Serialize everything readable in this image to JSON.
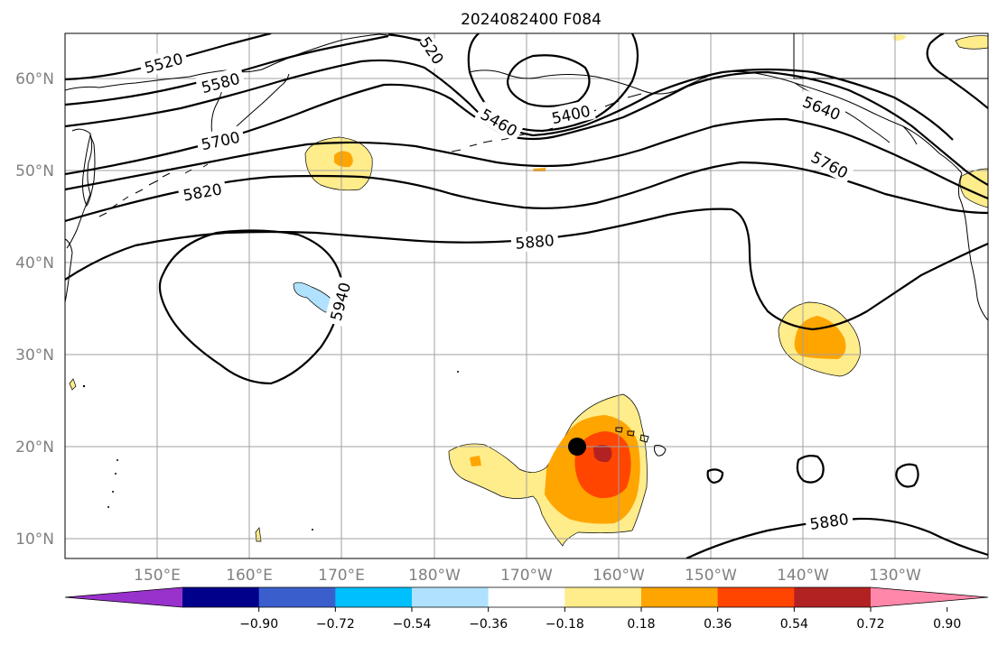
{
  "title": "2024082400 F084",
  "lat_labels": [
    "60°N",
    "50°N",
    "40°N",
    "30°N",
    "20°N",
    "10°N"
  ],
  "lon_labels": [
    "150°E",
    "160°E",
    "170°E",
    "180°W",
    "170°W",
    "160°W",
    "150°W",
    "140°W",
    "130°W"
  ],
  "contour_labels": [
    "5520",
    "5580",
    "5700",
    "5820",
    "5460",
    "5400",
    "5640",
    "5760",
    "5880",
    "5940",
    "5880",
    "520"
  ],
  "colorbar": {
    "ticks": [
      "−0.90",
      "−0.72",
      "−0.54",
      "−0.36",
      "−0.18",
      "0.18",
      "0.36",
      "0.54",
      "0.72",
      "0.90"
    ],
    "colors": [
      "#9932CC",
      "#00008B",
      "#3A5FCD",
      "#00BFFF",
      "#B0E2FF",
      "#FFFFFF",
      "#FFEC8B",
      "#FFA500",
      "#FF4500",
      "#B22222",
      "#FF88AA"
    ]
  },
  "marker": {
    "label": "storm-center",
    "lat": 20,
    "lon": -165
  }
}
